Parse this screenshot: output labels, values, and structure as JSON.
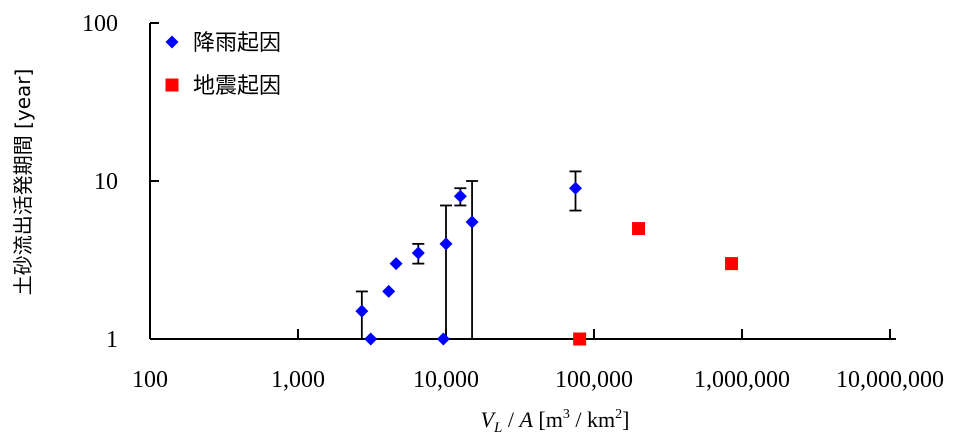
{
  "chart_data": {
    "type": "scatter",
    "xscale": "log",
    "yscale": "log",
    "xlim": [
      100,
      10000000
    ],
    "ylim": [
      1,
      100
    ],
    "x_tick_labels": [
      "100",
      "1,000",
      "10,000",
      "100,000",
      "1,000,000",
      "10,000,000"
    ],
    "y_tick_labels": [
      "1",
      "10",
      "100"
    ],
    "xlabel": {
      "v": "V",
      "sub": "L",
      "mid": " / ",
      "a": "A",
      "unit_pre": " [m",
      "sup1": "3",
      "unit_mid": " / km",
      "sup2": "2",
      "unit_post": "]"
    },
    "ylabel": "土砂流出活発期間 [year]",
    "legend_position": "top-left",
    "series": [
      {
        "name": "降雨起因",
        "marker": "diamond",
        "color": "#0000ff",
        "points": [
          {
            "x": 2700,
            "y": 1.5,
            "err_low": 1.0,
            "err_high": 2.0
          },
          {
            "x": 3100,
            "y": 1.0
          },
          {
            "x": 4100,
            "y": 2.0
          },
          {
            "x": 4600,
            "y": 3.0
          },
          {
            "x": 6500,
            "y": 3.5,
            "err_low": 3.0,
            "err_high": 4.0
          },
          {
            "x": 9600,
            "y": 1.0
          },
          {
            "x": 10000,
            "y": 4.0,
            "err_low": 1.0,
            "err_high": 7.0
          },
          {
            "x": 12500,
            "y": 8.0,
            "err_low": 7.0,
            "err_high": 9.0
          },
          {
            "x": 15000,
            "y": 5.5,
            "err_low": 1.0,
            "err_high": 10.0
          },
          {
            "x": 75000,
            "y": 9.0,
            "err_low": 6.5,
            "err_high": 11.5
          }
        ]
      },
      {
        "name": "地震起因",
        "marker": "square",
        "color": "#ff0000",
        "points": [
          {
            "x": 80000,
            "y": 1.0
          },
          {
            "x": 200000,
            "y": 5.0
          },
          {
            "x": 850000,
            "y": 3.0
          }
        ]
      }
    ]
  }
}
